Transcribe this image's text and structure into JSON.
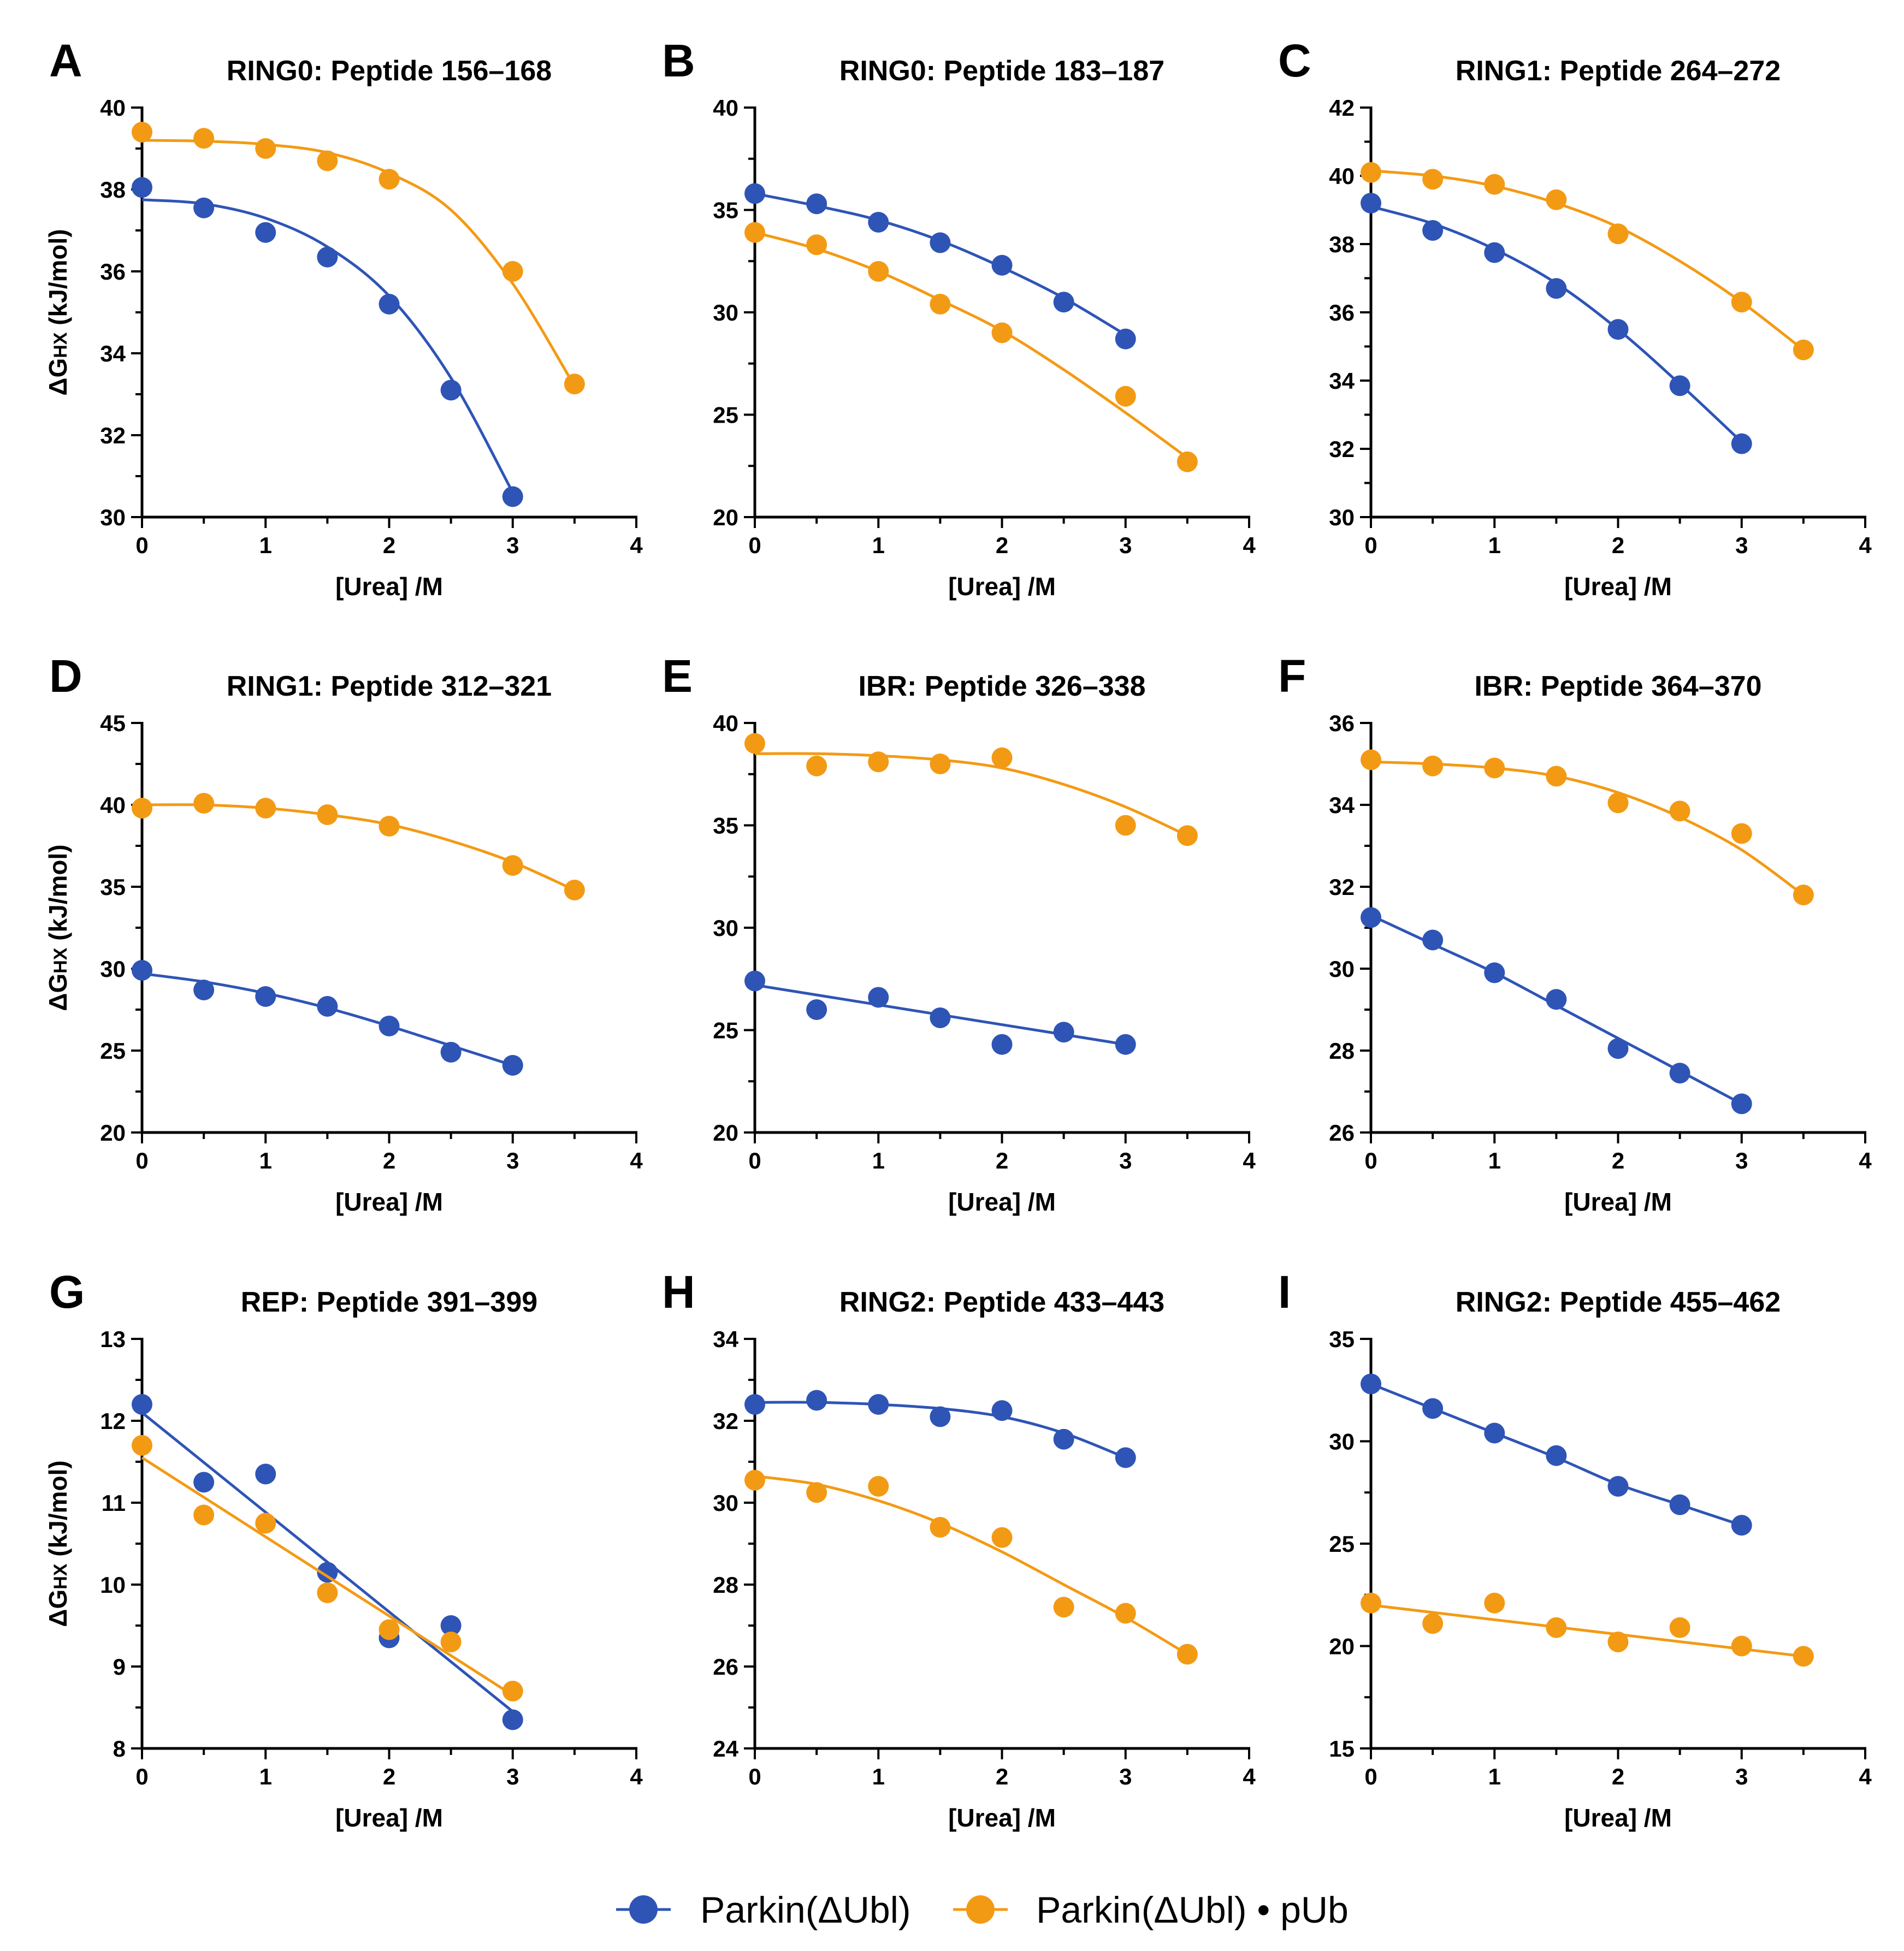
{
  "figure": {
    "series_names": [
      "Parkin(ΔUbl)",
      "Parkin(ΔUbl) • pUb"
    ],
    "series_colors": [
      "#2e54b6",
      "#f39a14"
    ]
  },
  "chart_data": [
    {
      "type": "scatter",
      "panel": "A",
      "title": "RING0: Peptide 156–168",
      "xlabel": "[Urea] /M",
      "ylabel": "ΔG",
      "ylabel_sub": "HX",
      "ylabel_tail": " (kJ/mol)",
      "xlim": [
        0,
        4
      ],
      "ylim": [
        30,
        40
      ],
      "xticks": [
        0,
        1,
        2,
        3,
        4
      ],
      "yticks": [
        30,
        32,
        34,
        36,
        38,
        40
      ],
      "series": [
        {
          "name": "Parkin(ΔUbl)",
          "x": [
            0,
            0.5,
            1,
            1.5,
            2,
            2.5,
            3
          ],
          "y": [
            38.05,
            37.55,
            36.95,
            36.35,
            35.2,
            33.1,
            30.5
          ],
          "fit": {
            "x": [
              0,
              0.5,
              1,
              1.5,
              2,
              2.5,
              3
            ],
            "y": [
              37.75,
              37.65,
              37.3,
              36.6,
              35.4,
              33.4,
              30.6
            ]
          }
        },
        {
          "name": "Parkin(ΔUbl) • pUb",
          "x": [
            0,
            0.5,
            1,
            1.5,
            2,
            3,
            3.5
          ],
          "y": [
            39.4,
            39.25,
            39.0,
            38.7,
            38.25,
            36.0,
            33.25
          ],
          "fit": {
            "x": [
              0,
              0.5,
              1,
              1.5,
              2,
              2.5,
              3,
              3.5
            ],
            "y": [
              39.2,
              39.18,
              39.1,
              38.9,
              38.4,
              37.5,
              35.7,
              33.2
            ]
          }
        }
      ]
    },
    {
      "type": "scatter",
      "panel": "B",
      "title": "RING0: Peptide 183–187",
      "xlabel": "[Urea] /M",
      "ylabel": "",
      "ylabel_sub": "",
      "ylabel_tail": "",
      "xlim": [
        0,
        4
      ],
      "ylim": [
        20,
        40
      ],
      "xticks": [
        0,
        1,
        2,
        3,
        4
      ],
      "yticks": [
        20,
        25,
        30,
        35,
        40
      ],
      "series": [
        {
          "name": "Parkin(ΔUbl)",
          "x": [
            0,
            0.5,
            1,
            1.5,
            2,
            2.5,
            3
          ],
          "y": [
            35.8,
            35.3,
            34.4,
            33.4,
            32.3,
            30.5,
            28.7
          ],
          "fit": {
            "x": [
              0,
              0.5,
              1,
              1.5,
              2,
              2.5,
              3
            ],
            "y": [
              35.8,
              35.2,
              34.5,
              33.5,
              32.2,
              30.7,
              28.9
            ]
          }
        },
        {
          "name": "Parkin(ΔUbl) • pUb",
          "x": [
            0,
            0.5,
            1,
            1.5,
            2,
            3,
            3.5
          ],
          "y": [
            33.9,
            33.3,
            32.0,
            30.4,
            29.0,
            25.9,
            22.7
          ],
          "fit": {
            "x": [
              0,
              0.5,
              1,
              1.5,
              2,
              2.5,
              3,
              3.5
            ],
            "y": [
              33.9,
              33.1,
              32.0,
              30.6,
              29.1,
              27.2,
              25.1,
              22.9
            ]
          }
        }
      ]
    },
    {
      "type": "scatter",
      "panel": "C",
      "title": "RING1: Peptide 264–272",
      "xlabel": "[Urea] /M",
      "ylabel": "",
      "ylabel_sub": "",
      "ylabel_tail": "",
      "xlim": [
        0,
        4
      ],
      "ylim": [
        30,
        42
      ],
      "xticks": [
        0,
        1,
        2,
        3,
        4
      ],
      "yticks": [
        30,
        32,
        34,
        36,
        38,
        40,
        42
      ],
      "series": [
        {
          "name": "Parkin(ΔUbl)",
          "x": [
            0,
            0.5,
            1,
            1.5,
            2,
            2.5,
            3
          ],
          "y": [
            39.2,
            38.4,
            37.75,
            36.7,
            35.5,
            33.85,
            32.15
          ],
          "fit": {
            "x": [
              0,
              0.5,
              1,
              1.5,
              2,
              2.5,
              3
            ],
            "y": [
              39.1,
              38.6,
              37.85,
              36.85,
              35.5,
              33.9,
              32.2
            ]
          }
        },
        {
          "name": "Parkin(ΔUbl) • pUb",
          "x": [
            0,
            0.5,
            1,
            1.5,
            2,
            3,
            3.5
          ],
          "y": [
            40.1,
            39.9,
            39.75,
            39.3,
            38.3,
            36.3,
            34.9
          ],
          "fit": {
            "x": [
              0,
              0.5,
              1,
              1.5,
              2,
              2.5,
              3,
              3.5
            ],
            "y": [
              40.15,
              40.0,
              39.7,
              39.2,
              38.5,
              37.5,
              36.3,
              34.9
            ]
          }
        }
      ]
    },
    {
      "type": "scatter",
      "panel": "D",
      "title": "RING1: Peptide 312–321",
      "xlabel": "[Urea] /M",
      "ylabel": "ΔG",
      "ylabel_sub": "HX",
      "ylabel_tail": " (kJ/mol)",
      "xlim": [
        0,
        4
      ],
      "ylim": [
        20,
        45
      ],
      "xticks": [
        0,
        1,
        2,
        3,
        4
      ],
      "yticks": [
        20,
        25,
        30,
        35,
        40,
        45
      ],
      "series": [
        {
          "name": "Parkin(ΔUbl)",
          "x": [
            0,
            0.5,
            1,
            1.5,
            2,
            2.5,
            3
          ],
          "y": [
            29.9,
            28.7,
            28.3,
            27.7,
            26.5,
            24.9,
            24.1
          ],
          "fit": {
            "x": [
              0,
              0.5,
              1,
              1.5,
              2,
              2.5,
              3
            ],
            "y": [
              29.7,
              29.2,
              28.5,
              27.6,
              26.5,
              25.3,
              24.1
            ]
          }
        },
        {
          "name": "Parkin(ΔUbl) • pUb",
          "x": [
            0,
            0.5,
            1,
            1.5,
            2,
            3,
            3.5
          ],
          "y": [
            39.8,
            40.1,
            39.8,
            39.4,
            38.7,
            36.3,
            34.8
          ],
          "fit": {
            "x": [
              0,
              0.5,
              1,
              1.5,
              2,
              2.5,
              3,
              3.5
            ],
            "y": [
              40.0,
              40.0,
              39.8,
              39.4,
              38.8,
              37.8,
              36.5,
              34.8
            ]
          }
        }
      ]
    },
    {
      "type": "scatter",
      "panel": "E",
      "title": "IBR: Peptide 326–338",
      "xlabel": "[Urea] /M",
      "ylabel": "",
      "ylabel_sub": "",
      "ylabel_tail": "",
      "xlim": [
        0,
        4
      ],
      "ylim": [
        20,
        40
      ],
      "xticks": [
        0,
        1,
        2,
        3,
        4
      ],
      "yticks": [
        20,
        25,
        30,
        35,
        40
      ],
      "series": [
        {
          "name": "Parkin(ΔUbl)",
          "x": [
            0,
            0.5,
            1,
            1.5,
            2,
            2.5,
            3
          ],
          "y": [
            27.4,
            26.0,
            26.6,
            25.6,
            24.3,
            24.9,
            24.3
          ],
          "fit": {
            "x": [
              0,
              3
            ],
            "y": [
              27.2,
              24.3
            ]
          }
        },
        {
          "name": "Parkin(ΔUbl) • pUb",
          "x": [
            0,
            0.5,
            1,
            1.5,
            2,
            3,
            3.5
          ],
          "y": [
            39.0,
            37.9,
            38.1,
            38.0,
            38.3,
            35.0,
            34.5
          ],
          "fit": {
            "x": [
              0,
              0.5,
              1,
              1.5,
              2,
              2.5,
              3,
              3.5
            ],
            "y": [
              38.5,
              38.5,
              38.4,
              38.2,
              37.8,
              37.0,
              35.9,
              34.5
            ]
          }
        }
      ]
    },
    {
      "type": "scatter",
      "panel": "F",
      "title": "IBR: Peptide 364–370",
      "xlabel": "[Urea] /M",
      "ylabel": "",
      "ylabel_sub": "",
      "ylabel_tail": "",
      "xlim": [
        0,
        4
      ],
      "ylim": [
        26,
        36
      ],
      "xticks": [
        0,
        1,
        2,
        3,
        4
      ],
      "yticks": [
        26,
        28,
        30,
        32,
        34,
        36
      ],
      "series": [
        {
          "name": "Parkin(ΔUbl)",
          "x": [
            0,
            0.5,
            1,
            1.5,
            2,
            2.5,
            3
          ],
          "y": [
            31.25,
            30.7,
            29.9,
            29.25,
            28.05,
            27.45,
            26.7
          ],
          "fit": {
            "x": [
              0,
              0.5,
              1,
              1.5,
              2,
              2.5,
              3
            ],
            "y": [
              31.3,
              30.6,
              29.9,
              29.1,
              28.3,
              27.5,
              26.7
            ]
          }
        },
        {
          "name": "Parkin(ΔUbl) • pUb",
          "x": [
            0,
            0.5,
            1,
            1.5,
            2,
            2.5,
            3,
            3.5
          ],
          "y": [
            35.1,
            34.95,
            34.9,
            34.7,
            34.05,
            33.85,
            33.3,
            31.8
          ],
          "fit": {
            "x": [
              0,
              0.5,
              1,
              1.5,
              2,
              2.5,
              3,
              3.5
            ],
            "y": [
              35.05,
              35.0,
              34.9,
              34.7,
              34.3,
              33.7,
              32.9,
              31.8
            ]
          }
        }
      ]
    },
    {
      "type": "scatter",
      "panel": "G",
      "title": "REP: Peptide 391–399",
      "xlabel": "[Urea] /M",
      "ylabel": "ΔG",
      "ylabel_sub": "HX",
      "ylabel_tail": " (kJ/mol)",
      "xlim": [
        0,
        4
      ],
      "ylim": [
        8,
        13
      ],
      "xticks": [
        0,
        1,
        2,
        3,
        4
      ],
      "yticks": [
        8,
        9,
        10,
        11,
        12,
        13
      ],
      "series": [
        {
          "name": "Parkin(ΔUbl)",
          "x": [
            0,
            0.5,
            1,
            1.5,
            2,
            2.5,
            3
          ],
          "y": [
            12.2,
            11.25,
            11.35,
            10.15,
            9.35,
            9.5,
            8.35
          ],
          "fit": {
            "x": [
              0,
              3
            ],
            "y": [
              12.1,
              8.45
            ]
          }
        },
        {
          "name": "Parkin(ΔUbl) • pUb",
          "x": [
            0,
            0.5,
            1,
            1.5,
            2,
            2.5,
            3
          ],
          "y": [
            11.7,
            10.85,
            10.75,
            9.9,
            9.45,
            9.3,
            8.7
          ],
          "fit": {
            "x": [
              0,
              3
            ],
            "y": [
              11.55,
              8.65
            ]
          }
        }
      ]
    },
    {
      "type": "scatter",
      "panel": "H",
      "title": "RING2: Peptide 433–443",
      "xlabel": "[Urea] /M",
      "ylabel": "",
      "ylabel_sub": "",
      "ylabel_tail": "",
      "xlim": [
        0,
        4
      ],
      "ylim": [
        24,
        34
      ],
      "xticks": [
        0,
        1,
        2,
        3,
        4
      ],
      "yticks": [
        24,
        26,
        28,
        30,
        32,
        34
      ],
      "series": [
        {
          "name": "Parkin(ΔUbl)",
          "x": [
            0,
            0.5,
            1,
            1.5,
            2,
            2.5,
            3
          ],
          "y": [
            32.4,
            32.5,
            32.4,
            32.1,
            32.25,
            31.55,
            31.1
          ],
          "fit": {
            "x": [
              0,
              0.5,
              1,
              1.5,
              2,
              2.5,
              3
            ],
            "y": [
              32.45,
              32.45,
              32.4,
              32.3,
              32.1,
              31.7,
              31.1
            ]
          }
        },
        {
          "name": "Parkin(ΔUbl) • pUb",
          "x": [
            0,
            0.5,
            1,
            1.5,
            2,
            2.5,
            3,
            3.5
          ],
          "y": [
            30.55,
            30.25,
            30.4,
            29.4,
            29.15,
            27.45,
            27.3,
            26.3
          ],
          "fit": {
            "x": [
              0,
              0.5,
              1,
              1.5,
              2,
              2.5,
              3,
              3.5
            ],
            "y": [
              30.65,
              30.45,
              30.05,
              29.5,
              28.8,
              28.0,
              27.2,
              26.3
            ]
          }
        }
      ]
    },
    {
      "type": "scatter",
      "panel": "I",
      "title": "RING2: Peptide 455–462",
      "xlabel": "[Urea] /M",
      "ylabel": "",
      "ylabel_sub": "",
      "ylabel_tail": "",
      "xlim": [
        0,
        4
      ],
      "ylim": [
        15,
        35
      ],
      "xticks": [
        0,
        1,
        2,
        3,
        4
      ],
      "yticks": [
        15,
        20,
        25,
        30,
        35
      ],
      "series": [
        {
          "name": "Parkin(ΔUbl)",
          "x": [
            0,
            0.5,
            1,
            1.5,
            2,
            2.5,
            3
          ],
          "y": [
            32.8,
            31.6,
            30.4,
            29.3,
            27.8,
            26.9,
            25.9
          ],
          "fit": {
            "x": [
              0,
              0.5,
              1,
              1.5,
              2,
              2.5,
              3
            ],
            "y": [
              32.8,
              31.6,
              30.4,
              29.2,
              27.9,
              26.9,
              25.9
            ]
          }
        },
        {
          "name": "Parkin(ΔUbl) • pUb",
          "x": [
            0,
            0.5,
            1,
            1.5,
            2,
            2.5,
            3,
            3.5
          ],
          "y": [
            22.1,
            21.1,
            22.1,
            20.9,
            20.2,
            20.9,
            20.0,
            19.5
          ],
          "fit": {
            "x": [
              0,
              3.5
            ],
            "y": [
              22.0,
              19.5
            ]
          }
        }
      ]
    }
  ]
}
